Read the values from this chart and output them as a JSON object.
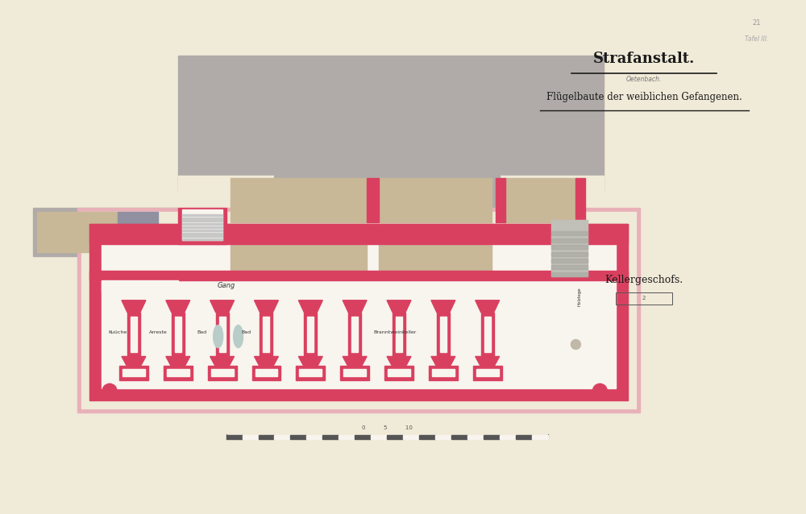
{
  "paper_color": "#f0ead8",
  "gray_color": "#b0aba8",
  "red_color": "#d94060",
  "pink_color": "#e8a0a8",
  "tan_color": "#c8b898",
  "white_color": "#f8f4ee",
  "title_main": "Strafanstalt.",
  "title_sub": "Oetenbach.",
  "title_sub2": "Flügelbaute der weiblichen Gefangenen.",
  "label_kellergeschoss": "Kellergeschofs.",
  "label_gang": "Gang",
  "label_kueche": "Kuüche",
  "label_arreste": "Arreste",
  "label_bad1": "Bad",
  "label_bad2": "Bad",
  "label_branntkeller": "Branntweinkeller",
  "label_holzlege": "Holzlege",
  "folio": "Tafel III.",
  "page_num": "21"
}
